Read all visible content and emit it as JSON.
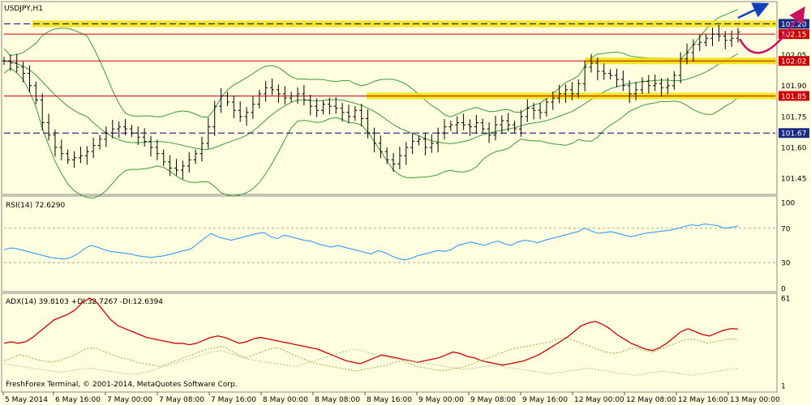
{
  "chart_data": [
    {
      "type": "candlestick",
      "title": "USDJPY,H1",
      "ylim": [
        101.38,
        102.3
      ],
      "y_ticks": [
        "102.20",
        "102.15",
        "102.05",
        "102.02",
        "101.90",
        "101.85",
        "101.75",
        "101.67",
        "101.60",
        "101.45"
      ],
      "levels": [
        {
          "value": 102.2,
          "label": "102.20",
          "style": "dashed",
          "color": "#000080",
          "highlight": true
        },
        {
          "value": 102.15,
          "label": "102.15",
          "style": "solid",
          "color": "#cc0000",
          "highlight": false
        },
        {
          "value": 102.02,
          "label": "102.02",
          "style": "solid",
          "color": "#cc0000",
          "highlight": true
        },
        {
          "value": 101.85,
          "label": "101.85",
          "style": "solid",
          "color": "#cc0000",
          "highlight": true
        },
        {
          "value": 101.67,
          "label": "101.67",
          "style": "dashed",
          "color": "#000080",
          "highlight": false
        }
      ],
      "close": [
        102.02,
        102.01,
        101.99,
        101.96,
        101.9,
        101.83,
        101.72,
        101.66,
        101.6,
        101.57,
        101.54,
        101.55,
        101.56,
        101.58,
        101.61,
        101.64,
        101.67,
        101.69,
        101.7,
        101.69,
        101.67,
        101.65,
        101.63,
        101.6,
        101.57,
        101.53,
        101.5,
        101.49,
        101.51,
        101.54,
        101.57,
        101.62,
        101.7,
        101.8,
        101.85,
        101.82,
        101.78,
        101.75,
        101.77,
        101.81,
        101.86,
        101.89,
        101.88,
        101.86,
        101.84,
        101.85,
        101.86,
        101.83,
        101.8,
        101.78,
        101.81,
        101.8,
        101.79,
        101.77,
        101.75,
        101.78,
        101.74,
        101.67,
        101.62,
        101.58,
        101.54,
        101.52,
        101.56,
        101.6,
        101.63,
        101.64,
        101.6,
        101.62,
        101.67,
        101.7,
        101.71,
        101.72,
        101.71,
        101.7,
        101.72,
        101.69,
        101.66,
        101.71,
        101.73,
        101.71,
        101.69,
        101.75,
        101.79,
        101.78,
        101.77,
        101.82,
        101.84,
        101.86,
        101.88,
        101.86,
        101.91,
        101.99,
        102.01,
        101.97,
        101.96,
        101.95,
        101.93,
        101.9,
        101.86,
        101.88,
        101.92,
        101.9,
        101.91,
        101.89,
        101.9,
        101.95,
        102.03,
        102.06,
        102.1,
        102.11,
        102.13,
        102.15,
        102.14,
        102.12,
        102.13,
        102.16
      ]
    },
    {
      "type": "line",
      "title": "RSI(14) 72.6290",
      "ylim": [
        0,
        100
      ],
      "y_ticks": [
        "100",
        "70",
        "30",
        "0"
      ],
      "levels": [
        70,
        30
      ],
      "series": [
        {
          "color": "#1e90ff",
          "values": [
            45,
            47,
            46,
            44,
            42,
            40,
            38,
            36,
            35,
            34,
            36,
            40,
            46,
            50,
            48,
            45,
            43,
            42,
            41,
            40,
            38,
            37,
            36,
            37,
            38,
            40,
            42,
            44,
            46,
            52,
            58,
            64,
            60,
            58,
            56,
            58,
            60,
            62,
            64,
            65,
            60,
            58,
            62,
            60,
            58,
            56,
            55,
            52,
            50,
            48,
            50,
            48,
            46,
            44,
            42,
            40,
            44,
            42,
            38,
            35,
            33,
            35,
            38,
            40,
            42,
            44,
            43,
            45,
            50,
            52,
            54,
            52,
            50,
            53,
            55,
            52,
            50,
            54,
            56,
            55,
            53,
            56,
            58,
            60,
            62,
            64,
            66,
            70,
            67,
            64,
            65,
            66,
            64,
            62,
            60,
            62,
            64,
            65,
            66,
            67,
            68,
            70,
            72,
            74,
            73,
            75,
            74,
            73,
            70,
            71,
            72.6
          ]
        }
      ]
    },
    {
      "type": "line",
      "title": "ADX(14) 39.8103 +DI:32.7267 -DI:12.6394",
      "ylim": [
        1,
        61
      ],
      "y_ticks": [
        "61",
        "1"
      ],
      "x_ticks": [
        "5 May 2014",
        "6 May 16:00",
        "7 May 00:00",
        "7 May 08:00",
        "7 May 16:00",
        "8 May 00:00",
        "8 May 08:00",
        "8 May 16:00",
        "9 May 00:00",
        "9 May 08:00",
        "9 May 16:00",
        "12 May 00:00",
        "12 May 08:00",
        "12 May 16:00",
        "13 May 00:00"
      ],
      "series": [
        {
          "color": "#cc0000",
          "values": [
            30,
            31,
            30,
            31,
            34,
            38,
            42,
            46,
            48,
            50,
            53,
            58,
            61,
            58,
            52,
            46,
            42,
            40,
            38,
            36,
            34,
            33,
            32,
            31,
            30,
            30,
            29,
            30,
            32,
            34,
            35,
            34,
            32,
            30,
            31,
            33,
            34,
            33,
            32,
            31,
            30,
            29,
            28,
            27,
            26,
            24,
            22,
            20,
            18,
            17,
            16,
            18,
            20,
            22,
            21,
            20,
            19,
            18,
            17,
            18,
            19,
            20,
            22,
            24,
            23,
            21,
            20,
            18,
            17,
            16,
            15,
            16,
            17,
            18,
            20,
            22,
            25,
            28,
            31,
            34,
            38,
            42,
            44,
            45,
            43,
            40,
            36,
            33,
            30,
            28,
            26,
            25,
            27,
            30,
            34,
            38,
            40,
            38,
            36,
            35,
            37,
            39,
            40,
            39.8
          ]
        },
        {
          "color": "#7ab83a",
          "dashed": true,
          "values": [
            18,
            20,
            22,
            21,
            19,
            18,
            17,
            18,
            20,
            22,
            25,
            27,
            26,
            24,
            22,
            20,
            19,
            17,
            16,
            15,
            14,
            16,
            18,
            20,
            22,
            24,
            26,
            27,
            28,
            25,
            22,
            20,
            22,
            24,
            26,
            27,
            25,
            22,
            20,
            18,
            16,
            15,
            14,
            13,
            12,
            11,
            12,
            13,
            14,
            15,
            17,
            18,
            16,
            14,
            13,
            12,
            11,
            12,
            13,
            14,
            16,
            18,
            20,
            22,
            24,
            26,
            27,
            28,
            29,
            30,
            31,
            33,
            34,
            32,
            30,
            28,
            26,
            24,
            23,
            24,
            26,
            27,
            25,
            24,
            26,
            28,
            30,
            32,
            33,
            32,
            30,
            31,
            32,
            33,
            32.7
          ]
        },
        {
          "color": "#a8c48a",
          "dashed": true,
          "values": [
            16,
            15,
            14,
            13,
            12,
            11,
            10,
            11,
            12,
            13,
            12,
            11,
            10,
            9,
            9,
            10,
            12,
            14,
            16,
            18,
            20,
            22,
            24,
            25,
            23,
            21,
            19,
            18,
            17,
            16,
            15,
            14,
            16,
            18,
            20,
            22,
            24,
            26,
            25,
            23,
            21,
            20,
            19,
            18,
            17,
            16,
            15,
            14,
            13,
            12,
            13,
            14,
            15,
            14,
            13,
            12,
            11,
            10,
            9,
            10,
            11,
            12,
            13,
            12,
            11,
            10,
            9,
            8,
            9,
            10,
            11,
            10,
            9,
            8,
            9,
            10,
            11,
            12,
            12.6
          ]
        }
      ]
    }
  ],
  "watermark": "FreshForex Terminal, © 2001-2014, MetaQuotes Software Corp."
}
